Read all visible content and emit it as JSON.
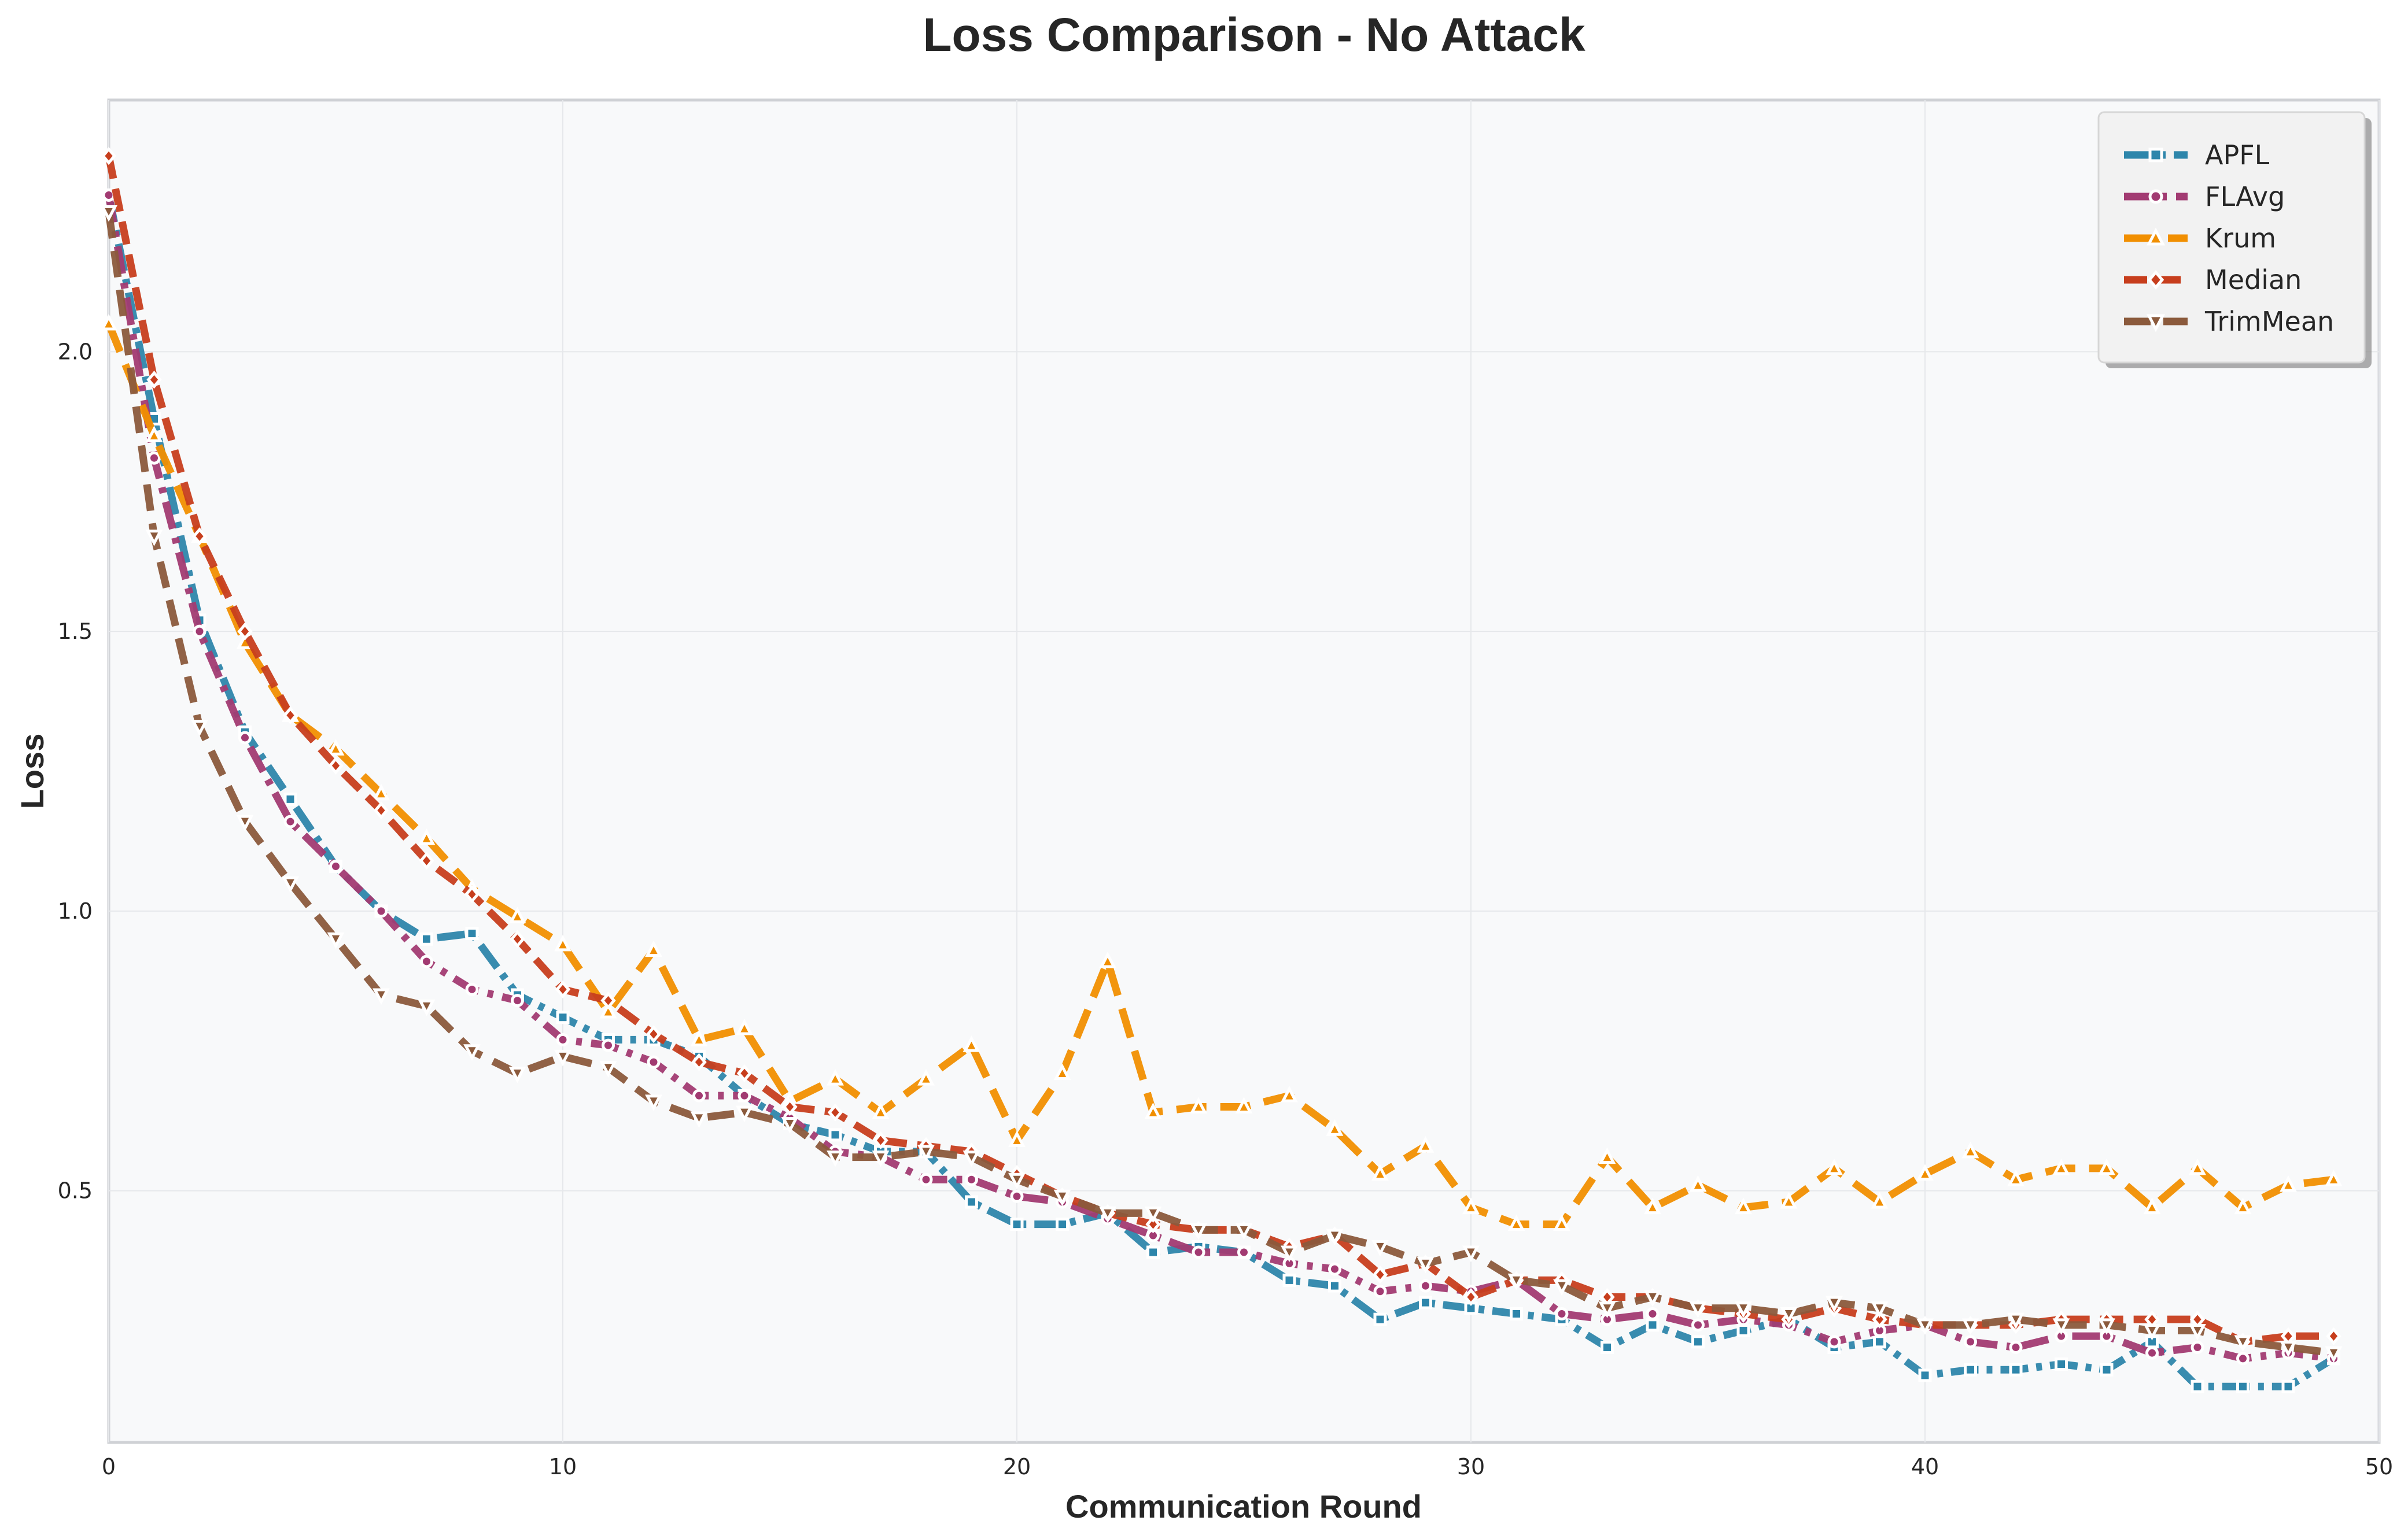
{
  "chart_data": {
    "type": "line",
    "title": "Loss Comparison - No Attack",
    "xlabel": "Communication Round",
    "ylabel": "Loss",
    "xlim": [
      0,
      50
    ],
    "ylim": [
      0.05,
      2.45
    ],
    "xticks": [
      "0",
      "10",
      "20",
      "30",
      "40",
      "50"
    ],
    "yticks": [
      "0.5",
      "1.0",
      "1.5",
      "2.0"
    ],
    "grid": true,
    "legend_position": "top-right",
    "x": [
      0,
      1,
      2,
      3,
      4,
      5,
      6,
      7,
      8,
      9,
      10,
      11,
      12,
      13,
      14,
      15,
      16,
      17,
      18,
      19,
      20,
      21,
      22,
      23,
      24,
      25,
      26,
      27,
      28,
      29,
      30,
      31,
      32,
      33,
      34,
      35,
      36,
      37,
      38,
      39,
      40,
      41,
      42,
      43,
      44,
      45,
      46,
      47,
      48,
      49
    ],
    "series": [
      {
        "name": "APFL",
        "color": "#2e86ab",
        "marker": "square",
        "values": [
          2.28,
          1.88,
          1.52,
          1.32,
          1.2,
          1.08,
          1.0,
          0.95,
          0.96,
          0.85,
          0.81,
          0.77,
          0.77,
          0.74,
          0.67,
          0.62,
          0.6,
          0.57,
          0.57,
          0.48,
          0.44,
          0.44,
          0.46,
          0.39,
          0.4,
          0.39,
          0.34,
          0.33,
          0.27,
          0.3,
          0.29,
          0.28,
          0.27,
          0.22,
          0.26,
          0.23,
          0.25,
          0.27,
          0.22,
          0.23,
          0.17,
          0.18,
          0.18,
          0.19,
          0.18,
          0.23,
          0.15,
          0.15,
          0.15,
          0.2
        ]
      },
      {
        "name": "FLAvg",
        "color": "#a23b72",
        "marker": "circle",
        "values": [
          2.28,
          1.81,
          1.5,
          1.31,
          1.16,
          1.08,
          1.0,
          0.91,
          0.86,
          0.84,
          0.77,
          0.76,
          0.73,
          0.67,
          0.67,
          0.63,
          0.57,
          0.56,
          0.52,
          0.52,
          0.49,
          0.48,
          0.45,
          0.42,
          0.39,
          0.39,
          0.37,
          0.36,
          0.32,
          0.33,
          0.32,
          0.34,
          0.28,
          0.27,
          0.28,
          0.26,
          0.27,
          0.26,
          0.23,
          0.25,
          0.26,
          0.23,
          0.22,
          0.24,
          0.24,
          0.21,
          0.22,
          0.2,
          0.21,
          0.2
        ]
      },
      {
        "name": "Krum",
        "color": "#f18f01",
        "marker": "triangle-up",
        "values": [
          2.05,
          1.85,
          1.67,
          1.48,
          1.35,
          1.29,
          1.21,
          1.13,
          1.04,
          0.99,
          0.94,
          0.82,
          0.93,
          0.77,
          0.79,
          0.66,
          0.7,
          0.64,
          0.7,
          0.76,
          0.59,
          0.71,
          0.91,
          0.64,
          0.65,
          0.65,
          0.67,
          0.61,
          0.53,
          0.58,
          0.47,
          0.44,
          0.44,
          0.56,
          0.47,
          0.51,
          0.47,
          0.48,
          0.54,
          0.48,
          0.53,
          0.57,
          0.52,
          0.54,
          0.54,
          0.47,
          0.54,
          0.47,
          0.51,
          0.52
        ]
      },
      {
        "name": "Median",
        "color": "#c73e1d",
        "marker": "diamond",
        "values": [
          2.35,
          1.95,
          1.67,
          1.5,
          1.35,
          1.26,
          1.18,
          1.09,
          1.03,
          0.95,
          0.86,
          0.84,
          0.78,
          0.73,
          0.71,
          0.65,
          0.64,
          0.59,
          0.58,
          0.57,
          0.53,
          0.49,
          0.46,
          0.44,
          0.43,
          0.43,
          0.4,
          0.42,
          0.35,
          0.37,
          0.31,
          0.34,
          0.34,
          0.31,
          0.31,
          0.29,
          0.28,
          0.27,
          0.29,
          0.27,
          0.26,
          0.26,
          0.26,
          0.27,
          0.27,
          0.27,
          0.27,
          0.23,
          0.24,
          0.24
        ]
      },
      {
        "name": "TrimMean",
        "color": "#8b5a3c",
        "marker": "triangle-down",
        "values": [
          2.25,
          1.67,
          1.33,
          1.16,
          1.05,
          0.95,
          0.85,
          0.83,
          0.75,
          0.71,
          0.74,
          0.72,
          0.66,
          0.63,
          0.64,
          0.62,
          0.56,
          0.56,
          0.57,
          0.56,
          0.52,
          0.49,
          0.46,
          0.46,
          0.43,
          0.43,
          0.39,
          0.42,
          0.4,
          0.37,
          0.39,
          0.34,
          0.33,
          0.29,
          0.31,
          0.29,
          0.29,
          0.28,
          0.3,
          0.29,
          0.26,
          0.26,
          0.27,
          0.26,
          0.26,
          0.25,
          0.25,
          0.23,
          0.22,
          0.21
        ]
      }
    ]
  }
}
